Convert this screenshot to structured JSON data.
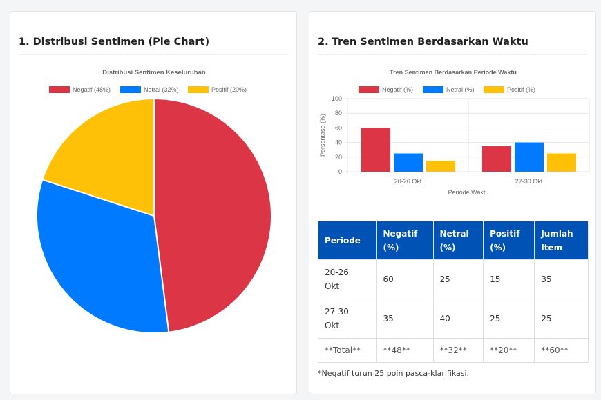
{
  "sections": {
    "pie_title": "1. Distribusi Sentimen (Pie Chart)",
    "trend_title": "2. Tren Sentimen Berdasarkan Waktu"
  },
  "colors": {
    "negatif": "#dc3545",
    "netral": "#007bff",
    "positif": "#ffc107",
    "table_header": "#0152b5"
  },
  "chart_data": [
    {
      "type": "pie",
      "title": "Distribusi Sentimen Keseluruhan",
      "legend_position": "top",
      "categories": [
        "Negatif (48%)",
        "Netral (32%)",
        "Positif (20%)"
      ],
      "values": [
        48,
        32,
        20
      ]
    },
    {
      "type": "bar",
      "title": "Tren Sentimen Berdasarkan Periode Waktu",
      "legend_position": "top",
      "categories": [
        "20-26 Okt",
        "27-30 Okt"
      ],
      "series": [
        {
          "name": "Negatif (%)",
          "values": [
            60,
            35
          ]
        },
        {
          "name": "Netral (%)",
          "values": [
            25,
            40
          ]
        },
        {
          "name": "Positif (%)",
          "values": [
            15,
            25
          ]
        }
      ],
      "xlabel": "Periode Waktu",
      "ylabel": "Persentase (%)",
      "ylim": [
        0,
        100
      ],
      "yticks": [
        "0",
        "20",
        "40",
        "60",
        "80",
        "100"
      ],
      "grid": true
    }
  ],
  "table": {
    "headers": [
      [
        "Periode"
      ],
      [
        "Negatif",
        "(%)"
      ],
      [
        "Netral",
        "(%)"
      ],
      [
        "Positif",
        "(%)"
      ],
      [
        "Jumlah",
        "Item"
      ]
    ],
    "rows": [
      [
        [
          "20-26",
          "Okt"
        ],
        "60",
        "25",
        "15",
        "35"
      ],
      [
        [
          "27-30",
          "Okt"
        ],
        "35",
        "40",
        "25",
        "25"
      ]
    ],
    "total": [
      "**Total**",
      "**48**",
      "**32**",
      "**20**",
      "**60**"
    ]
  },
  "note": "*Negatif turun 25 poin pasca-klarifikasi."
}
